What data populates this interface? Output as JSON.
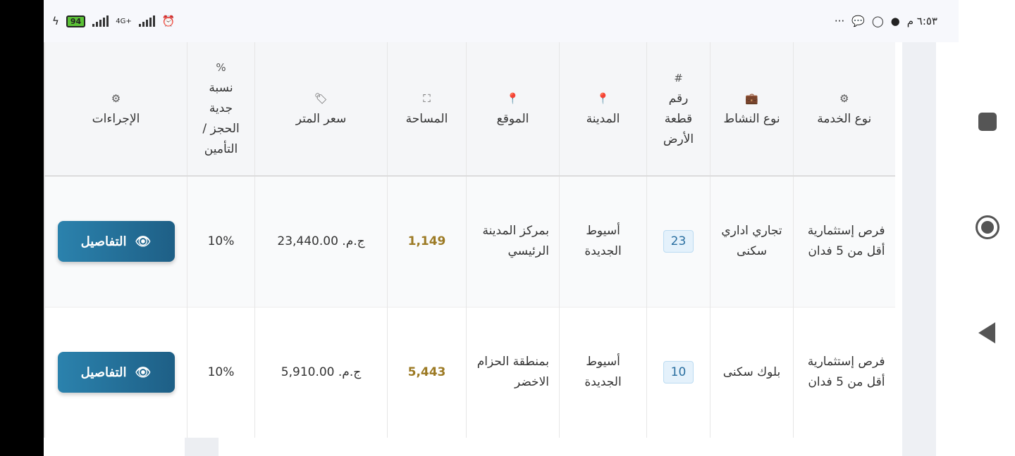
{
  "status_bar": {
    "battery": "94",
    "network": "4G+",
    "time": "٦:٥٣ م",
    "more": "···"
  },
  "table": {
    "headers": [
      {
        "icon": "gears-icon",
        "label": "نوع الخدمة"
      },
      {
        "icon": "briefcase-icon",
        "label": "نوع النشاط"
      },
      {
        "icon": "hash-icon",
        "label": "رقم قطعة الأرض"
      },
      {
        "icon": "map-pin-icon",
        "label": "المدينة"
      },
      {
        "icon": "map-pin-icon",
        "label": "الموقع"
      },
      {
        "icon": "expand-icon",
        "label": "المساحة"
      },
      {
        "icon": "tag-icon",
        "label": "سعر المتر"
      },
      {
        "icon": "percent-icon",
        "label": "نسبة جدية الحجز / التأمين"
      },
      {
        "icon": "gears-icon",
        "label": "الإجراءات"
      }
    ],
    "rows": [
      {
        "service": "فرص إستثمارية أقل من 5 فدان",
        "activity": "تجاري اداري سكنى",
        "plot": "23",
        "city": "أسيوط الجديدة",
        "location": "بمركز المدينة الرئيسي",
        "area": "1,149",
        "price": "ج.م. 23,440.00",
        "percent": "10%",
        "action": "التفاصيل"
      },
      {
        "service": "فرص إستثمارية أقل من 5 فدان",
        "activity": "بلوك سكنى",
        "plot": "10",
        "city": "أسيوط الجديدة",
        "location": "بمنطقة الحزام الاخضر",
        "area": "5,443",
        "price": "ج.م. 5,910.00",
        "percent": "10%",
        "action": "التفاصيل"
      }
    ]
  },
  "colors": {
    "button": "#236f98",
    "area": "#9c7a24",
    "badge_bg": "#e4f1fb",
    "battery": "#5bc236"
  }
}
